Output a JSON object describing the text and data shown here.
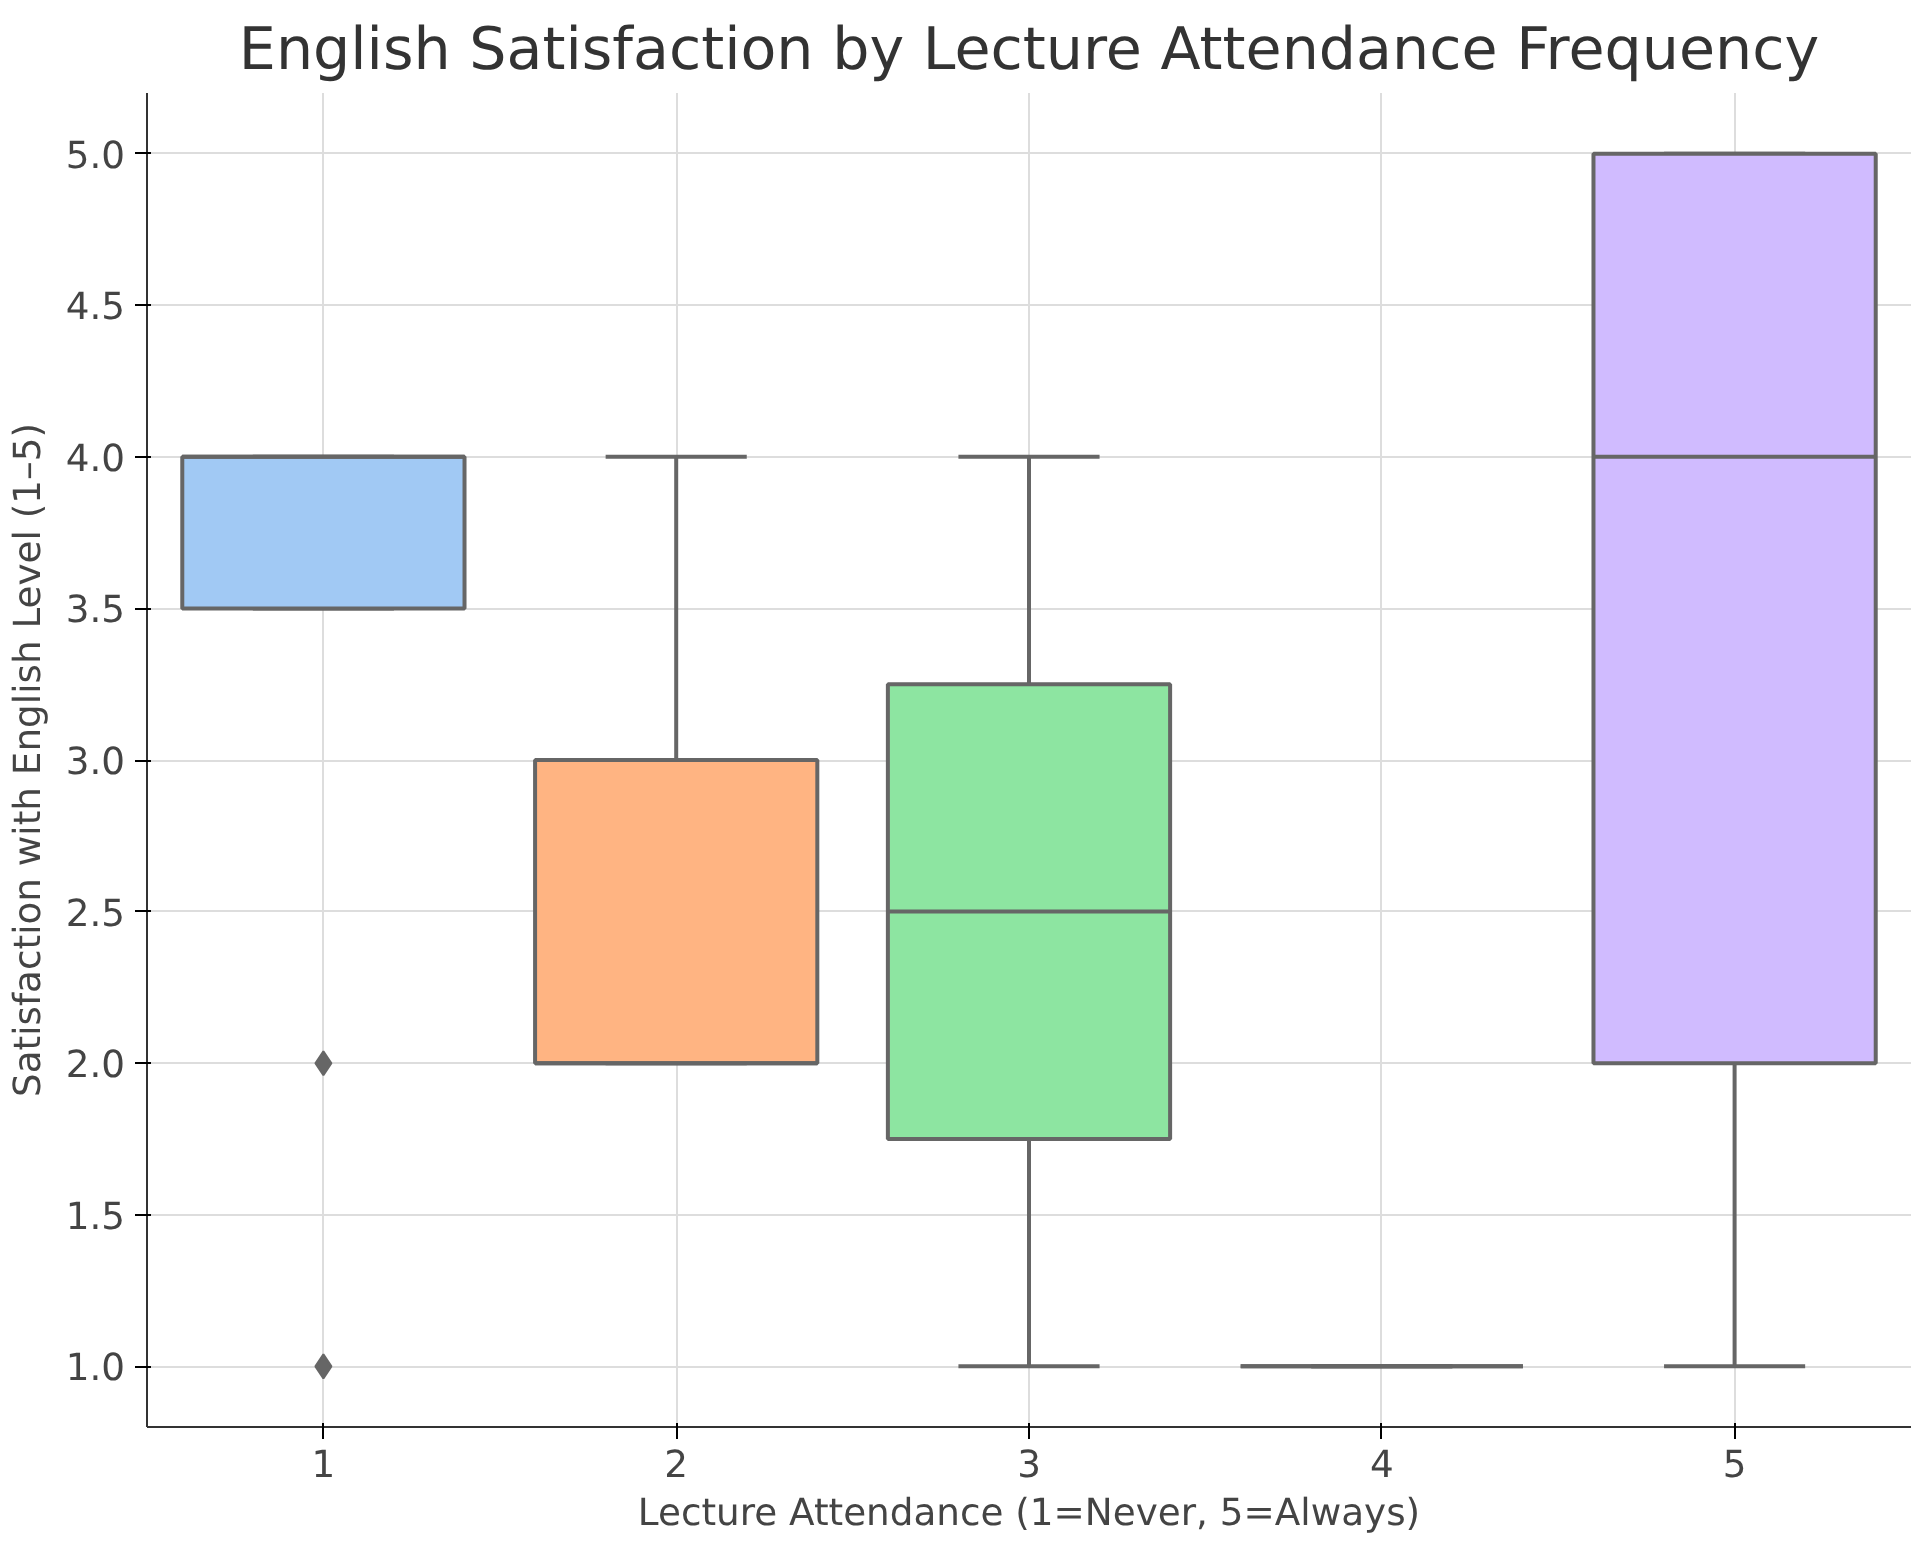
{
  "chart_data": {
    "type": "box",
    "title": "English Satisfaction by Lecture Attendance Frequency",
    "xlabel": "Lecture Attendance (1=Never, 5=Always)",
    "ylabel": "Satisfaction with English Level (1–5)",
    "categories": [
      "1",
      "2",
      "3",
      "4",
      "5"
    ],
    "colors": [
      "#a1c9f4",
      "#ffb482",
      "#8de5a1",
      "#666666",
      "#d0bbff"
    ],
    "boxes": [
      {
        "low": 3.5,
        "q1": 3.5,
        "median": 4.0,
        "q3": 4.0,
        "high": 4.0,
        "outliers": [
          2.0,
          1.0
        ]
      },
      {
        "low": 2.0,
        "q1": 2.0,
        "median": 2.0,
        "q3": 3.0,
        "high": 4.0
      },
      {
        "low": 1.0,
        "q1": 1.75,
        "median": 2.5,
        "q3": 3.25,
        "high": 4.0
      },
      {
        "low": 1.0,
        "q1": 1.0,
        "median": 1.0,
        "q3": 1.0,
        "high": 1.0
      },
      {
        "low": 1.0,
        "q1": 2.0,
        "median": 4.0,
        "q3": 5.0,
        "high": 5.0
      }
    ],
    "ylim": [
      0.8,
      5.2
    ],
    "yticks": [
      {
        "value": 1,
        "label": "1.0"
      },
      1.5,
      {
        "value": 2,
        "label": "2.0"
      },
      2.5,
      {
        "value": 3,
        "label": "3.0"
      },
      3.5,
      {
        "value": 4,
        "label": "4.0"
      },
      4.5,
      {
        "value": 5,
        "label": "5.0"
      }
    ],
    "grid": true,
    "marker": "diamond"
  }
}
